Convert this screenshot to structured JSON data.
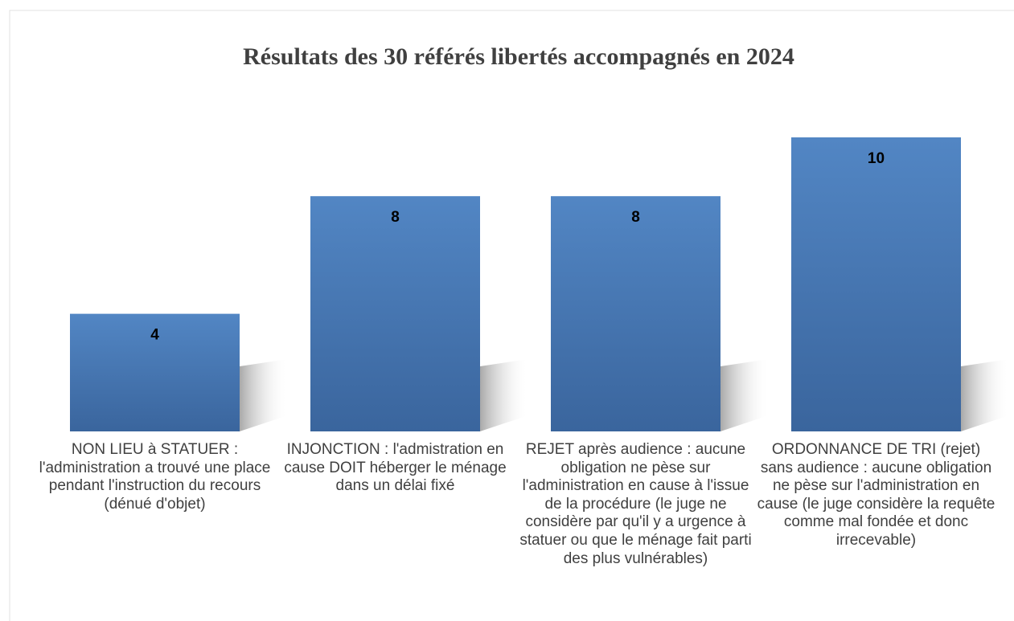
{
  "chart_data": {
    "type": "bar",
    "title": "Résultats des 30 référés libertés accompagnés en 2024",
    "categories": [
      "NON LIEU à STATUER : l'administration a trouvé une place pendant l'instruction du recours (dénué d'objet)",
      "INJONCTION : l'admistration en cause DOIT héberger le ménage dans un délai fixé",
      "REJET après audience : aucune obligation ne pèse sur l'administration en cause à l'issue de la procédure (le juge ne considère par qu'il y a urgence à statuer ou que le ménage fait parti des plus vulnérables)",
      "ORDONNANCE DE TRI (rejet) sans audience : aucune obligation ne pèse sur l'administration en cause (le juge considère la requête comme mal fondée et donc irrecevable)"
    ],
    "values": [
      4,
      8,
      8,
      10
    ],
    "color": "#4f81bd"
  }
}
